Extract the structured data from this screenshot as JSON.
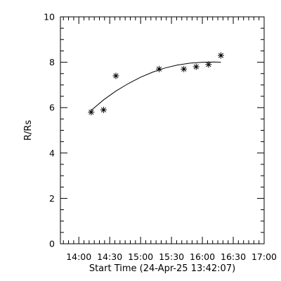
{
  "chart_data": {
    "type": "scatter",
    "title": "",
    "xlabel": "Start Time (24-Apr-25 13:42:07)",
    "ylabel": "R/Rs",
    "xlim": [
      "13:42:07",
      "17:00"
    ],
    "ylim": [
      0,
      10
    ],
    "x_ticks": [
      "14:00",
      "14:30",
      "15:00",
      "15:30",
      "16:00",
      "16:30",
      "17:00"
    ],
    "y_ticks": [
      "0",
      "2",
      "4",
      "6",
      "8",
      "10"
    ],
    "grid": false,
    "legend": "none",
    "points": [
      {
        "x": "14:12",
        "y": 5.8
      },
      {
        "x": "14:24",
        "y": 5.9
      },
      {
        "x": "14:36",
        "y": 7.4
      },
      {
        "x": "15:18",
        "y": 7.7
      },
      {
        "x": "15:42",
        "y": 7.7
      },
      {
        "x": "15:54",
        "y": 7.8
      },
      {
        "x": "16:06",
        "y": 7.9
      },
      {
        "x": "16:18",
        "y": 8.3
      }
    ],
    "fit_curve": [
      {
        "x": "14:12",
        "y": 5.88
      },
      {
        "x": "14:24",
        "y": 6.34
      },
      {
        "x": "14:36",
        "y": 6.73
      },
      {
        "x": "14:48",
        "y": 7.06
      },
      {
        "x": "15:00",
        "y": 7.34
      },
      {
        "x": "15:12",
        "y": 7.57
      },
      {
        "x": "15:24",
        "y": 7.75
      },
      {
        "x": "15:36",
        "y": 7.88
      },
      {
        "x": "15:48",
        "y": 7.96
      },
      {
        "x": "16:00",
        "y": 8.0
      },
      {
        "x": "16:12",
        "y": 8.01
      },
      {
        "x": "16:18",
        "y": 8.0
      }
    ]
  }
}
